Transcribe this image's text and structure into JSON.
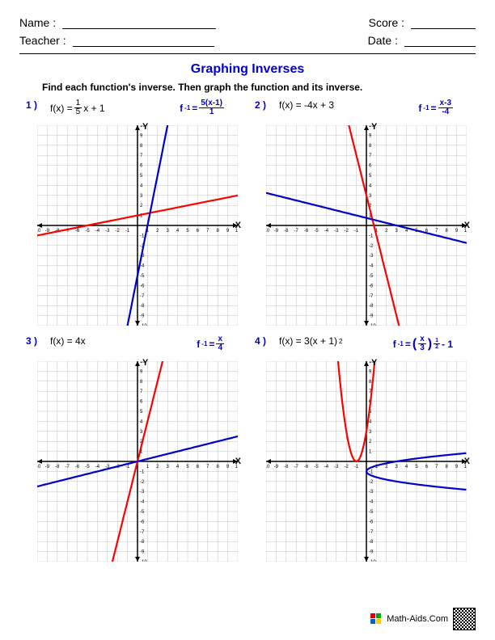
{
  "header": {
    "name_label": "Name :",
    "teacher_label": "Teacher :",
    "score_label": "Score :",
    "date_label": "Date :"
  },
  "title": "Graphing Inverses",
  "instructions": "Find each function's inverse. Then graph the function and its inverse.",
  "graph": {
    "xlim": [
      -10,
      10
    ],
    "ylim": [
      -10,
      10
    ],
    "tick_step": 1,
    "grid_color": "#c0c0c0",
    "axis_color": "#000000",
    "background": "#ffffff",
    "function_color": "#ff0000",
    "inverse_color": "#0000cc",
    "line_width": 2.2,
    "x_label": "X",
    "y_label": "Y",
    "tick_fontsize": 6
  },
  "problems": [
    {
      "num": "1 )",
      "fx_prefix": "f(x) = ",
      "fx_frac_num": "1",
      "fx_frac_den": "5",
      "fx_suffix": "x + 1",
      "inv_prefix": "f ",
      "inv_exp": "-1",
      "inv_eq": " = ",
      "inv_frac_num": "5(x-1)",
      "inv_frac_den": "1",
      "func": {
        "type": "line",
        "m": 0.2,
        "b": 1
      },
      "inv": {
        "type": "line",
        "m": 5,
        "b": -5
      }
    },
    {
      "num": "2 )",
      "fx_prefix": "f(x) = -4x + 3",
      "inv_prefix": "f ",
      "inv_exp": "-1",
      "inv_eq": " = ",
      "inv_frac_num": "x-3",
      "inv_frac_den": "-4",
      "func": {
        "type": "line",
        "m": -4,
        "b": 3
      },
      "inv": {
        "type": "line",
        "m": -0.25,
        "b": 0.75
      }
    },
    {
      "num": "3 )",
      "fx_prefix": "f(x) = 4x",
      "inv_prefix": "f ",
      "inv_exp": "-1",
      "inv_eq": " = ",
      "inv_frac_num": "x",
      "inv_frac_den": "4",
      "func": {
        "type": "line",
        "m": 4,
        "b": 0
      },
      "inv": {
        "type": "line",
        "m": 0.25,
        "b": 0
      }
    },
    {
      "num": "4 )",
      "fx_prefix": "f(x) = 3(x + 1)",
      "fx_exp": "2",
      "inv_prefix": "f ",
      "inv_exp": "-1",
      "inv_eq": " = ",
      "inv_paren_open": "(",
      "inv_frac_num": "x",
      "inv_frac_den": "3",
      "inv_paren_close": ")",
      "inv_outer_exp_num": "1",
      "inv_outer_exp_den": "2",
      "inv_suffix": " - 1",
      "func": {
        "type": "parabola",
        "a": 3,
        "h": -1,
        "k": 0
      },
      "inv": {
        "type": "inv_parabola",
        "a": 3,
        "h": -1,
        "k": 0
      }
    }
  ],
  "footer": {
    "site": "Math-Aids.Com"
  }
}
